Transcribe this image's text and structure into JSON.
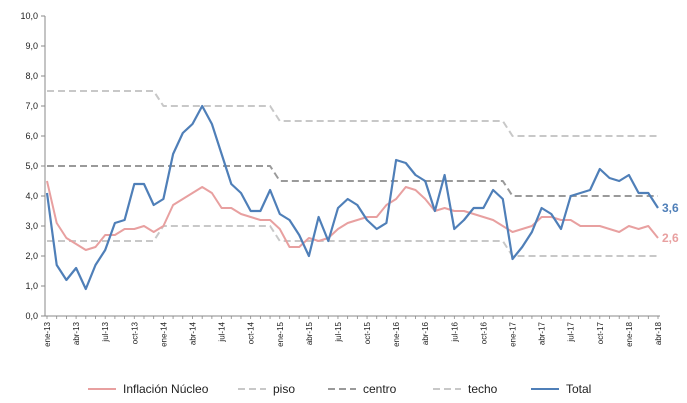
{
  "chart_data": {
    "type": "line",
    "title": "",
    "xlabel": "",
    "ylabel": "",
    "ylim": [
      0,
      10
    ],
    "yticks": [
      "0,0",
      "1,0",
      "2,0",
      "3,0",
      "4,0",
      "5,0",
      "6,0",
      "7,0",
      "8,0",
      "9,0",
      "10,0"
    ],
    "x_tick_labels": [
      "ene-13",
      "abr-13",
      "jul-13",
      "oct-13",
      "ene-14",
      "abr-14",
      "jul-14",
      "oct-14",
      "ene-15",
      "abr-15",
      "jul-15",
      "oct-15",
      "ene-16",
      "abr-16",
      "jul-16",
      "oct-16",
      "ene-17",
      "abr-17",
      "jul-17",
      "oct-17",
      "ene-18",
      "abr-18"
    ],
    "x_months": [
      "ene-13",
      "feb-13",
      "mar-13",
      "abr-13",
      "may-13",
      "jun-13",
      "jul-13",
      "ago-13",
      "sep-13",
      "oct-13",
      "nov-13",
      "dic-13",
      "ene-14",
      "feb-14",
      "mar-14",
      "abr-14",
      "may-14",
      "jun-14",
      "jul-14",
      "ago-14",
      "sep-14",
      "oct-14",
      "nov-14",
      "dic-14",
      "ene-15",
      "feb-15",
      "mar-15",
      "abr-15",
      "may-15",
      "jun-15",
      "jul-15",
      "ago-15",
      "sep-15",
      "oct-15",
      "nov-15",
      "dic-15",
      "ene-16",
      "feb-16",
      "mar-16",
      "abr-16",
      "may-16",
      "jun-16",
      "jul-16",
      "ago-16",
      "sep-16",
      "oct-16",
      "nov-16",
      "dic-16",
      "ene-17",
      "feb-17",
      "mar-17",
      "abr-17",
      "may-17",
      "jun-17",
      "jul-17",
      "ago-17",
      "sep-17",
      "oct-17",
      "nov-17",
      "dic-17",
      "ene-18",
      "feb-18",
      "mar-18",
      "abr-18"
    ],
    "grid": false,
    "legend_position": "bottom",
    "series": [
      {
        "name": "Inflación Núcleo",
        "color": "#e8a0a0",
        "style": "solid",
        "end_label": "2,6",
        "values": [
          4.5,
          3.1,
          2.6,
          2.4,
          2.2,
          2.3,
          2.7,
          2.7,
          2.9,
          2.9,
          3.0,
          2.8,
          3.0,
          3.7,
          3.9,
          4.1,
          4.3,
          4.1,
          3.6,
          3.6,
          3.4,
          3.3,
          3.2,
          3.2,
          2.9,
          2.3,
          2.3,
          2.6,
          2.5,
          2.6,
          2.9,
          3.1,
          3.2,
          3.3,
          3.3,
          3.7,
          3.9,
          4.3,
          4.2,
          3.9,
          3.5,
          3.6,
          3.5,
          3.5,
          3.4,
          3.3,
          3.2,
          3.0,
          2.8,
          2.9,
          3.0,
          3.3,
          3.3,
          3.2,
          3.2,
          3.0,
          3.0,
          3.0,
          2.9,
          2.8,
          3.0,
          2.9,
          3.0,
          2.6
        ]
      },
      {
        "name": "piso",
        "color": "#c8c8c8",
        "style": "dashed",
        "values": [
          2.5,
          2.5,
          2.5,
          2.5,
          2.5,
          2.5,
          2.5,
          2.5,
          2.5,
          2.5,
          2.5,
          2.5,
          3.0,
          3.0,
          3.0,
          3.0,
          3.0,
          3.0,
          3.0,
          3.0,
          3.0,
          3.0,
          3.0,
          3.0,
          2.5,
          2.5,
          2.5,
          2.5,
          2.5,
          2.5,
          2.5,
          2.5,
          2.5,
          2.5,
          2.5,
          2.5,
          2.5,
          2.5,
          2.5,
          2.5,
          2.5,
          2.5,
          2.5,
          2.5,
          2.5,
          2.5,
          2.5,
          2.5,
          2.0,
          2.0,
          2.0,
          2.0,
          2.0,
          2.0,
          2.0,
          2.0,
          2.0,
          2.0,
          2.0,
          2.0,
          2.0,
          2.0,
          2.0,
          2.0
        ]
      },
      {
        "name": "centro",
        "color": "#9a9a9a",
        "style": "dashed",
        "values": [
          5.0,
          5.0,
          5.0,
          5.0,
          5.0,
          5.0,
          5.0,
          5.0,
          5.0,
          5.0,
          5.0,
          5.0,
          5.0,
          5.0,
          5.0,
          5.0,
          5.0,
          5.0,
          5.0,
          5.0,
          5.0,
          5.0,
          5.0,
          5.0,
          4.5,
          4.5,
          4.5,
          4.5,
          4.5,
          4.5,
          4.5,
          4.5,
          4.5,
          4.5,
          4.5,
          4.5,
          4.5,
          4.5,
          4.5,
          4.5,
          4.5,
          4.5,
          4.5,
          4.5,
          4.5,
          4.5,
          4.5,
          4.5,
          4.0,
          4.0,
          4.0,
          4.0,
          4.0,
          4.0,
          4.0,
          4.0,
          4.0,
          4.0,
          4.0,
          4.0,
          4.0,
          4.0,
          4.0,
          4.0
        ]
      },
      {
        "name": "techo",
        "color": "#c8c8c8",
        "style": "dashed",
        "values": [
          7.5,
          7.5,
          7.5,
          7.5,
          7.5,
          7.5,
          7.5,
          7.5,
          7.5,
          7.5,
          7.5,
          7.5,
          7.0,
          7.0,
          7.0,
          7.0,
          7.0,
          7.0,
          7.0,
          7.0,
          7.0,
          7.0,
          7.0,
          7.0,
          6.5,
          6.5,
          6.5,
          6.5,
          6.5,
          6.5,
          6.5,
          6.5,
          6.5,
          6.5,
          6.5,
          6.5,
          6.5,
          6.5,
          6.5,
          6.5,
          6.5,
          6.5,
          6.5,
          6.5,
          6.5,
          6.5,
          6.5,
          6.5,
          6.0,
          6.0,
          6.0,
          6.0,
          6.0,
          6.0,
          6.0,
          6.0,
          6.0,
          6.0,
          6.0,
          6.0,
          6.0,
          6.0,
          6.0,
          6.0
        ]
      },
      {
        "name": "Total",
        "color": "#4f7fb8",
        "style": "solid",
        "end_label": "3,6",
        "values": [
          4.1,
          1.7,
          1.2,
          1.6,
          0.9,
          1.7,
          2.2,
          3.1,
          3.2,
          4.4,
          4.4,
          3.7,
          3.9,
          5.4,
          6.1,
          6.4,
          7.0,
          6.4,
          5.4,
          4.4,
          4.1,
          3.5,
          3.5,
          4.2,
          3.4,
          3.2,
          2.7,
          2.0,
          3.3,
          2.5,
          3.6,
          3.9,
          3.7,
          3.2,
          2.9,
          3.1,
          5.2,
          5.1,
          4.7,
          4.5,
          3.5,
          4.7,
          2.9,
          3.2,
          3.6,
          3.6,
          4.2,
          3.9,
          1.9,
          2.3,
          2.8,
          3.6,
          3.4,
          2.9,
          4.0,
          4.1,
          4.2,
          4.9,
          4.6,
          4.5,
          4.7,
          4.1,
          4.1,
          3.6
        ]
      }
    ]
  }
}
